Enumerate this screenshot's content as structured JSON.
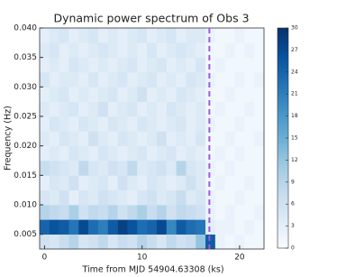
{
  "chart_data": {
    "type": "heatmap",
    "title": "Dynamic power spectrum of Obs 3",
    "x_label": "Time from MJD 54904.63308 (ks)",
    "y_label": "Frequency (Hz)",
    "xlim": [
      -0.5,
      22.5
    ],
    "ylim": [
      0.0025,
      0.04
    ],
    "xticks": [
      0,
      10,
      20
    ],
    "yticks": [
      0.005,
      {
        "value": 0.01,
        "label": "0.010"
      },
      0.015,
      {
        "value": 0.02,
        "label": "0.020"
      },
      0.025,
      {
        "value": 0.03,
        "label": "0.030"
      },
      0.035,
      {
        "value": 0.04,
        "label": "0.040"
      }
    ],
    "x_edges": [
      -0.5,
      0.5,
      1.5,
      2.5,
      3.5,
      4.5,
      5.5,
      6.5,
      7.5,
      8.5,
      9.5,
      10.5,
      11.5,
      12.5,
      13.5,
      14.5,
      15.5,
      16.5,
      17.5,
      18.5,
      19.5,
      20.5,
      21.5,
      22.5
    ],
    "y_edges": [
      0.0025,
      0.005,
      0.0075,
      0.01,
      0.0125,
      0.015,
      0.0175,
      0.02,
      0.0225,
      0.025,
      0.0275,
      0.03,
      0.0325,
      0.035,
      0.0375,
      0.04
    ],
    "z": [
      [
        6,
        5,
        7,
        9,
        5,
        6,
        8,
        5,
        7,
        6,
        9,
        7,
        5,
        8,
        6,
        7,
        12,
        25,
        2,
        1,
        2,
        1,
        1
      ],
      [
        24,
        26,
        25,
        22,
        27,
        23,
        21,
        25,
        28,
        26,
        23,
        24,
        27,
        20,
        25,
        23,
        22,
        3,
        2,
        2,
        1,
        2,
        1
      ],
      [
        9,
        8,
        7,
        10,
        6,
        8,
        7,
        9,
        6,
        8,
        10,
        7,
        9,
        6,
        8,
        7,
        6,
        2,
        1,
        2,
        1,
        1,
        2
      ],
      [
        5,
        4,
        6,
        3,
        5,
        4,
        6,
        5,
        4,
        3,
        5,
        6,
        4,
        5,
        7,
        4,
        5,
        2,
        1,
        1,
        2,
        1,
        1
      ],
      [
        3,
        5,
        4,
        6,
        3,
        4,
        5,
        3,
        6,
        4,
        3,
        5,
        4,
        3,
        4,
        6,
        4,
        1,
        2,
        1,
        1,
        2,
        1
      ],
      [
        7,
        6,
        5,
        4,
        8,
        5,
        4,
        6,
        5,
        8,
        4,
        5,
        6,
        4,
        9,
        5,
        4,
        2,
        1,
        2,
        1,
        1,
        1
      ],
      [
        3,
        4,
        3,
        5,
        4,
        3,
        5,
        4,
        3,
        4,
        5,
        3,
        4,
        5,
        3,
        4,
        3,
        1,
        2,
        1,
        2,
        1,
        1
      ],
      [
        4,
        3,
        5,
        4,
        3,
        6,
        4,
        3,
        5,
        4,
        3,
        4,
        6,
        3,
        4,
        3,
        5,
        1,
        1,
        2,
        1,
        1,
        2
      ],
      [
        3,
        5,
        4,
        3,
        5,
        4,
        3,
        5,
        4,
        3,
        5,
        4,
        3,
        4,
        5,
        3,
        4,
        2,
        1,
        1,
        2,
        1,
        1
      ],
      [
        4,
        3,
        4,
        5,
        3,
        4,
        6,
        3,
        4,
        5,
        3,
        4,
        3,
        5,
        4,
        3,
        4,
        1,
        2,
        1,
        1,
        2,
        1
      ],
      [
        3,
        4,
        5,
        3,
        4,
        3,
        4,
        5,
        3,
        4,
        6,
        3,
        4,
        3,
        5,
        4,
        3,
        1,
        1,
        2,
        1,
        1,
        1
      ],
      [
        5,
        3,
        4,
        4,
        3,
        5,
        3,
        4,
        5,
        3,
        4,
        5,
        3,
        4,
        3,
        5,
        4,
        2,
        1,
        1,
        2,
        1,
        2
      ],
      [
        3,
        4,
        3,
        5,
        4,
        3,
        4,
        3,
        4,
        5,
        3,
        4,
        5,
        3,
        4,
        3,
        5,
        1,
        2,
        1,
        1,
        1,
        1
      ],
      [
        4,
        5,
        3,
        4,
        3,
        4,
        5,
        4,
        3,
        4,
        3,
        5,
        3,
        4,
        5,
        4,
        3,
        1,
        1,
        2,
        1,
        2,
        1
      ],
      [
        3,
        4,
        5,
        3,
        4,
        5,
        3,
        4,
        3,
        4,
        5,
        3,
        4,
        5,
        3,
        4,
        4,
        2,
        1,
        1,
        2,
        1,
        1
      ]
    ],
    "zlim": [
      0,
      30
    ],
    "zticks": [
      0,
      3,
      6,
      9,
      12,
      15,
      18,
      21,
      24,
      27,
      30
    ],
    "colormap": [
      "#f7fbff",
      "#deebf7",
      "#c6dbef",
      "#9ecae1",
      "#6baed6",
      "#4292c6",
      "#2171b5",
      "#08519c",
      "#08306b"
    ],
    "marker_line": {
      "x": 16.9,
      "color": "#a05ad8"
    }
  }
}
